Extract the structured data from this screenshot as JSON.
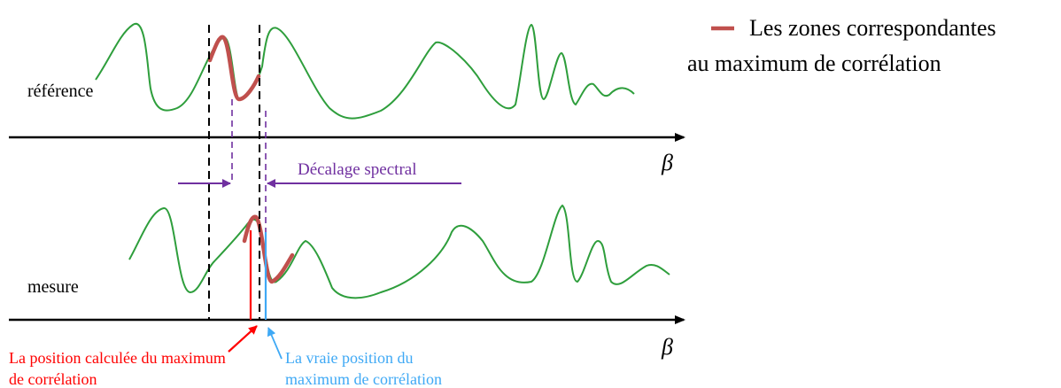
{
  "labels": {
    "reference": "référence",
    "measure": "mesure",
    "axis_top": "β",
    "axis_bottom": "β",
    "shift": "Décalage spectral",
    "calculated_line1": "La position calculée du maximum",
    "calculated_line2": "de corrélation",
    "true_line1": "La vraie position du",
    "true_line2": "maximum de corrélation"
  },
  "legend": {
    "line1": "Les zones correspondantes",
    "line2": "au maximum de corrélation"
  },
  "colors": {
    "signal": "#2e9e3c",
    "correlation_zone": "#c0504d",
    "shift_arrow": "#7030a0",
    "calculated_position": "#ff0000",
    "true_position": "#3fa9f5",
    "axis": "#000000",
    "window": "#000000"
  }
}
